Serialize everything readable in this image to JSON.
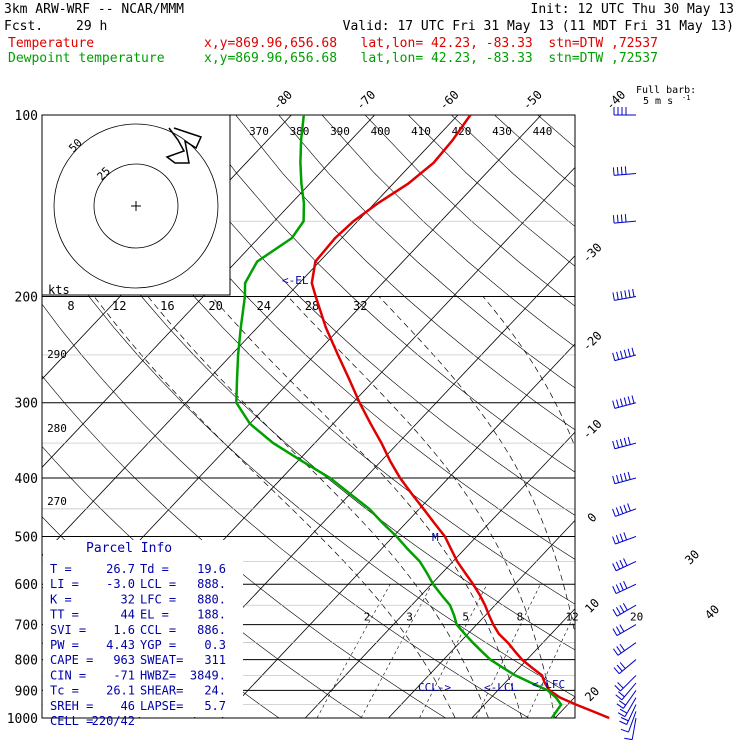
{
  "header": {
    "model": "3km ARW-WRF -- NCAR/MMM",
    "init": "Init: 12 UTC Thu 30 May 13",
    "fcst_label": "Fcst.",
    "fcst_value": "29 h",
    "valid": "Valid: 17 UTC Fri 31 May 13 (11 MDT Fri 31 May 13)",
    "temp_label": "Temperature",
    "dew_label": "Dewpoint temperature",
    "loc_line": "x,y=869.96,656.68   lat,lon= 42.23, -83.33  stn=DTW ,72537"
  },
  "barb_legend": {
    "title": "Full barb:",
    "value": "5 m s",
    "exponent": "-1"
  },
  "parcel_info": {
    "title": "Parcel Info",
    "rows": [
      [
        "T   =",
        "26.7",
        "Td =",
        "19.6"
      ],
      [
        "LI  =",
        "-3.0",
        "LCL =",
        "888."
      ],
      [
        "K   =",
        "32",
        "LFC =",
        "880."
      ],
      [
        "TT  =",
        "44",
        "EL  =",
        "188."
      ],
      [
        "SVI =",
        "1.6",
        "CCL =",
        "886."
      ],
      [
        "PW  =",
        "4.43",
        "YGP =",
        "0.3"
      ],
      [
        "CAPE =",
        "963",
        "SWEAT=",
        "311"
      ],
      [
        "CIN  =",
        "-71",
        "HWBZ=",
        "3849."
      ],
      [
        "Tc   =",
        "26.1",
        "SHEAR=",
        "24."
      ],
      [
        "SREH =",
        "46",
        "LAPSE=",
        "5.7"
      ],
      [
        "CELL =",
        "220/42",
        "",
        ""
      ]
    ]
  },
  "colors": {
    "temperature": "#e00000",
    "dewpoint": "#00a000",
    "background": "#ffffff"
  },
  "chart_data": {
    "type": "line",
    "pressure_ticks": [
      100,
      200,
      300,
      400,
      500,
      600,
      700,
      800,
      900,
      1000
    ],
    "temperature_labels": [
      -80,
      -70,
      -60,
      -50,
      -40,
      -30,
      -20,
      -10,
      0,
      10,
      20,
      30,
      40
    ],
    "theta_labels": [
      370,
      380,
      390,
      400,
      410,
      420,
      430,
      440
    ],
    "wind_speed_labels": {
      "unit": "kts",
      "values": [
        8,
        12,
        16,
        20,
        24,
        28,
        32
      ]
    },
    "mixing_ratio_labels": [
      2,
      3,
      5,
      8,
      12,
      20
    ],
    "dry_adiabat_labels": [
      290,
      280,
      270
    ],
    "hodograph_rings": [
      25,
      50
    ],
    "markers": [
      "<-EL",
      "<-LFC",
      "<-LCL",
      "CCL->"
    ],
    "series": [
      {
        "name": "Temperature",
        "pressure": [
          1000,
          975,
          950,
          925,
          900,
          875,
          850,
          825,
          800,
          775,
          750,
          725,
          700,
          675,
          650,
          625,
          600,
          575,
          550,
          525,
          500,
          475,
          450,
          425,
          400,
          375,
          350,
          325,
          300,
          275,
          250,
          225,
          200,
          190,
          175,
          160,
          150,
          140,
          130,
          120,
          110,
          100
        ],
        "temp_c": [
          26.5,
          23.8,
          21.0,
          18.3,
          16.2,
          14.8,
          13.6,
          11.5,
          9.4,
          7.6,
          5.8,
          3.7,
          2.0,
          0.4,
          -1.2,
          -3.0,
          -5.0,
          -7.2,
          -9.5,
          -11.6,
          -13.8,
          -16.6,
          -19.5,
          -22.6,
          -25.8,
          -28.9,
          -32.0,
          -35.5,
          -39.2,
          -43.0,
          -47.2,
          -51.8,
          -56.5,
          -58.5,
          -60.5,
          -60.8,
          -60.5,
          -59.6,
          -58.2,
          -57.5,
          -57.8,
          -58.5
        ]
      },
      {
        "name": "Dewpoint temperature",
        "pressure": [
          1000,
          975,
          950,
          925,
          900,
          875,
          850,
          825,
          800,
          775,
          750,
          725,
          700,
          675,
          650,
          625,
          600,
          575,
          550,
          525,
          500,
          475,
          450,
          425,
          400,
          375,
          350,
          325,
          300,
          275,
          250,
          225,
          200,
          190,
          175,
          160,
          150,
          140,
          130,
          120,
          110,
          100
        ],
        "temp_c": [
          19.6,
          19.4,
          19.2,
          17.8,
          16.0,
          13.2,
          10.4,
          8.0,
          5.6,
          3.6,
          1.6,
          -0.4,
          -2.4,
          -3.8,
          -5.4,
          -7.6,
          -9.8,
          -11.8,
          -14.0,
          -16.8,
          -19.6,
          -22.8,
          -26.0,
          -30.0,
          -34.2,
          -39.5,
          -45.0,
          -50.0,
          -54.0,
          -56.5,
          -59.2,
          -62.0,
          -65.0,
          -66.5,
          -67.5,
          -66.0,
          -66.5,
          -68.5,
          -71.0,
          -73.5,
          -76.0,
          -78.5
        ]
      }
    ],
    "wind_profile": {
      "pressure": [
        1000,
        975,
        950,
        925,
        900,
        875,
        850,
        800,
        750,
        700,
        650,
        600,
        550,
        500,
        450,
        400,
        350,
        300,
        250,
        200,
        150,
        125,
        100
      ],
      "speed_kt": [
        12,
        16,
        20,
        22,
        24,
        26,
        28,
        32,
        34,
        38,
        40,
        42,
        44,
        46,
        50,
        54,
        58,
        62,
        66,
        60,
        48,
        44,
        40
      ],
      "direction": [
        190,
        200,
        205,
        210,
        215,
        220,
        225,
        230,
        235,
        240,
        240,
        245,
        245,
        250,
        250,
        255,
        255,
        255,
        255,
        260,
        265,
        265,
        270
      ]
    }
  }
}
